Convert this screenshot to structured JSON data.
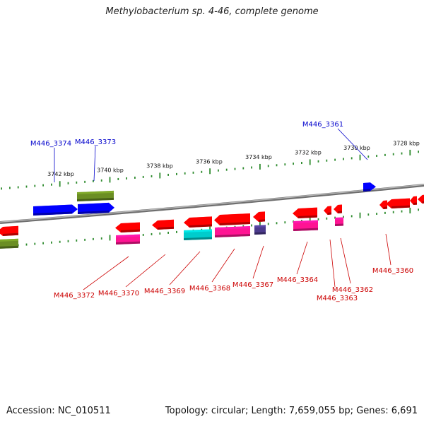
{
  "title": "Methylobacterium sp. 4-46, complete genome",
  "footer": {
    "accession": "Accession: NC_010511",
    "summary": "Topology: circular; Length: 7,659,055 bp; Genes: 6,691"
  },
  "colors": {
    "backbone": "#8a8a8a",
    "tick": "#2e8b2e",
    "forward_label": "#0000cc",
    "reverse_label": "#cc0000",
    "red": "#ff0000",
    "blue": "#0000ff",
    "olive": "#6b8e23",
    "pink": "#ff1493",
    "cyan": "#00cccc",
    "purple": "#4b3a8c"
  },
  "scale_labels": [
    "3742 kbp",
    "3740 kbp",
    "3738 kbp",
    "3736 kbp",
    "3734 kbp",
    "3732 kbp",
    "3730 kbp",
    "3728 kbp"
  ],
  "forward_genes": [
    {
      "id": "M446_3374",
      "color": "blue"
    },
    {
      "id": "M446_3373",
      "color": "blue"
    },
    {
      "id": "M446_3361",
      "color": "blue"
    }
  ],
  "reverse_genes": [
    {
      "id": "M446_3372",
      "color": "red"
    },
    {
      "id": "M446_3370",
      "color": "red"
    },
    {
      "id": "M446_3369",
      "color": "red"
    },
    {
      "id": "M446_3368",
      "color": "red"
    },
    {
      "id": "M446_3367",
      "color": "red"
    },
    {
      "id": "M446_3364",
      "color": "red"
    },
    {
      "id": "M446_3363",
      "color": "red"
    },
    {
      "id": "M446_3362",
      "color": "red"
    },
    {
      "id": "M446_3360",
      "color": "red"
    }
  ]
}
